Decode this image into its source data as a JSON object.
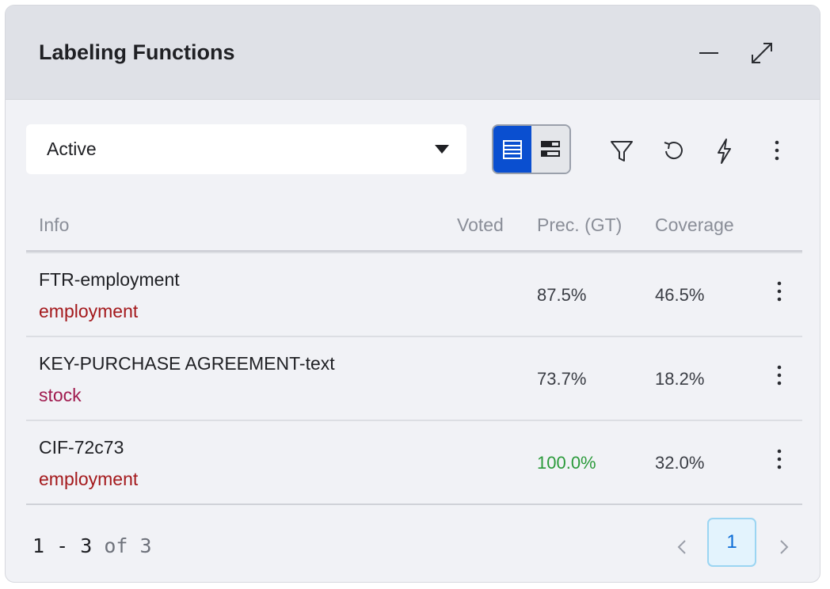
{
  "panel": {
    "title": "Labeling Functions"
  },
  "filter": {
    "selected": "Active"
  },
  "table": {
    "headers": {
      "info": "Info",
      "voted": "Voted",
      "precision": "Prec. (GT)",
      "coverage": "Coverage"
    },
    "rows": [
      {
        "name": "FTR-employment",
        "label": "employment",
        "label_color": "#a4191c",
        "voted": "",
        "precision": "87.5%",
        "precision_color": "#3a3d44",
        "coverage": "46.5%"
      },
      {
        "name": "KEY-PURCHASE AGREEMENT-text",
        "label": "stock",
        "label_color": "#a01a4e",
        "voted": "",
        "precision": "73.7%",
        "precision_color": "#3a3d44",
        "coverage": "18.2%"
      },
      {
        "name": "CIF-72c73",
        "label": "employment",
        "label_color": "#a4191c",
        "voted": "",
        "precision": "100.0%",
        "precision_color": "#2a9a3a",
        "coverage": "32.0%"
      }
    ]
  },
  "pagination": {
    "range": "1 - 3",
    "of_text": "of 3",
    "current_page": "1"
  },
  "icons": {
    "minimize": "minimize-icon",
    "expand": "expand-icon",
    "caret": "caret-down-icon",
    "table_view": "table-view-icon",
    "bar_view": "bar-view-icon",
    "filter": "filter-icon",
    "refresh": "refresh-icon",
    "bolt": "lightning-icon",
    "more": "more-vertical-icon"
  },
  "colors": {
    "accent": "#0a4fd0",
    "header_bg": "#dfe1e7",
    "panel_bg": "#f1f2f6",
    "page_active_bg": "#e3f3fd"
  }
}
